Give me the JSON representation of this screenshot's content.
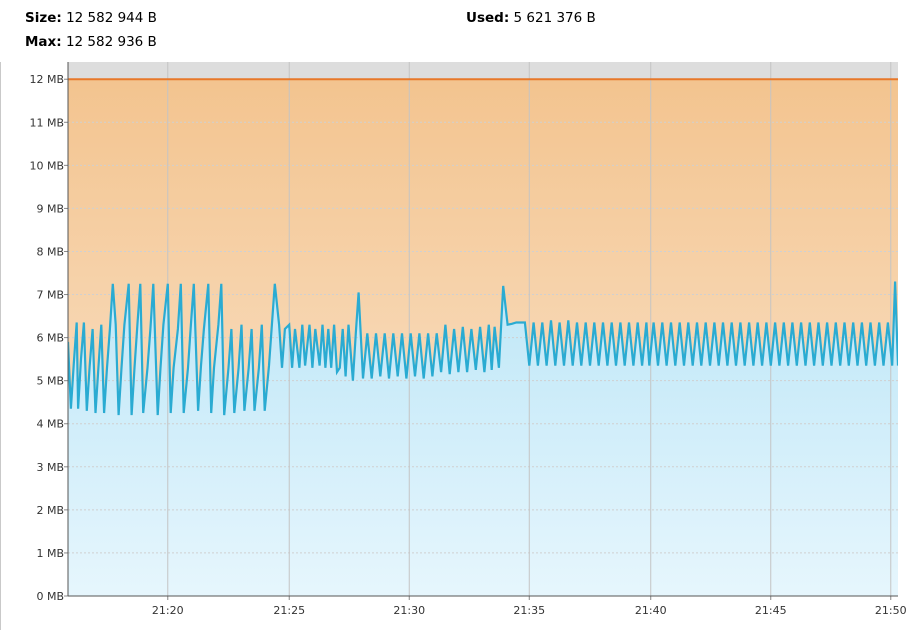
{
  "stats": {
    "size_label": "Size:",
    "size_value": "12 582 944 B",
    "max_label": "Max:",
    "max_value": "12 582 936 B",
    "used_label": "Used:",
    "used_value": "5 621 376 B"
  },
  "colors": {
    "used_line": "#2aabd2",
    "max_line": "#e8782a",
    "upper_fill_top": "#f3c48f",
    "upper_fill_bottom": "#fbe7d2",
    "lower_fill_top": "#bfe7f7",
    "lower_fill_bottom": "#e6f6fd",
    "header_band": "#dddddd",
    "grid": "#d0d0d0"
  },
  "chart_data": {
    "type": "line",
    "title": "",
    "xlabel": "",
    "ylabel": "",
    "ylim": [
      0,
      12.4
    ],
    "xlim": [
      21.264,
      21.838
    ],
    "y_ticks": [
      {
        "value": 0,
        "label": "0 MB"
      },
      {
        "value": 1,
        "label": "1 MB"
      },
      {
        "value": 2,
        "label": "2 MB"
      },
      {
        "value": 3,
        "label": "3 MB"
      },
      {
        "value": 4,
        "label": "4 MB"
      },
      {
        "value": 5,
        "label": "5 MB"
      },
      {
        "value": 6,
        "label": "6 MB"
      },
      {
        "value": 7,
        "label": "7 MB"
      },
      {
        "value": 8,
        "label": "8 MB"
      },
      {
        "value": 9,
        "label": "9 MB"
      },
      {
        "value": 10,
        "label": "10 MB"
      },
      {
        "value": 11,
        "label": "11 MB"
      },
      {
        "value": 12,
        "label": "12 MB"
      }
    ],
    "x_ticks": [
      {
        "value": 21.333,
        "label": "21:20"
      },
      {
        "value": 21.417,
        "label": "21:25"
      },
      {
        "value": 21.5,
        "label": "21:30"
      },
      {
        "value": 21.583,
        "label": "21:35"
      },
      {
        "value": 21.667,
        "label": "21:40"
      },
      {
        "value": 21.75,
        "label": "21:45"
      },
      {
        "value": 21.833,
        "label": "21:50"
      }
    ],
    "series": [
      {
        "name": "Max",
        "x": [
          21.264,
          21.838
        ],
        "y": [
          12.0,
          12.0
        ]
      },
      {
        "name": "Used",
        "x": [
          21.264,
          21.266,
          21.268,
          21.27,
          21.271,
          21.273,
          21.275,
          21.277,
          21.279,
          21.281,
          21.283,
          21.285,
          21.287,
          21.289,
          21.291,
          21.293,
          21.295,
          21.297,
          21.299,
          21.301,
          21.303,
          21.306,
          21.308,
          21.31,
          21.312,
          21.314,
          21.316,
          21.319,
          21.321,
          21.323,
          21.326,
          21.328,
          21.33,
          21.333,
          21.335,
          21.337,
          21.34,
          21.342,
          21.344,
          21.347,
          21.349,
          21.351,
          21.354,
          21.356,
          21.358,
          21.361,
          21.363,
          21.365,
          21.368,
          21.37,
          21.372,
          21.375,
          21.377,
          21.379,
          21.382,
          21.384,
          21.386,
          21.389,
          21.391,
          21.393,
          21.396,
          21.398,
          21.4,
          21.403,
          21.405,
          21.407,
          21.41,
          21.412,
          21.414,
          21.417,
          21.419,
          21.421,
          21.424,
          21.426,
          21.428,
          21.431,
          21.433,
          21.435,
          21.438,
          21.44,
          21.442,
          21.444,
          21.446,
          21.448,
          21.45,
          21.452,
          21.454,
          21.456,
          21.458,
          21.461,
          21.463,
          21.465,
          21.468,
          21.471,
          21.474,
          21.477,
          21.48,
          21.483,
          21.486,
          21.489,
          21.492,
          21.495,
          21.498,
          21.501,
          21.504,
          21.507,
          21.51,
          21.513,
          21.516,
          21.519,
          21.522,
          21.525,
          21.528,
          21.531,
          21.534,
          21.537,
          21.54,
          21.543,
          21.546,
          21.549,
          21.552,
          21.555,
          21.557,
          21.559,
          21.562,
          21.565,
          21.568,
          21.571,
          21.574,
          21.577,
          21.58,
          21.583,
          21.586,
          21.589,
          21.592,
          21.595,
          21.598,
          21.601,
          21.604,
          21.607,
          21.61,
          21.613,
          21.616,
          21.619,
          21.622,
          21.625,
          21.628,
          21.631,
          21.634,
          21.637,
          21.64,
          21.643,
          21.646,
          21.649,
          21.652,
          21.655,
          21.658,
          21.661,
          21.664,
          21.666,
          21.669,
          21.672,
          21.675,
          21.678,
          21.681,
          21.684,
          21.687,
          21.69,
          21.693,
          21.696,
          21.699,
          21.702,
          21.705,
          21.708,
          21.711,
          21.714,
          21.717,
          21.72,
          21.723,
          21.726,
          21.729,
          21.732,
          21.735,
          21.738,
          21.741,
          21.744,
          21.747,
          21.75,
          21.753,
          21.756,
          21.759,
          21.762,
          21.765,
          21.768,
          21.771,
          21.774,
          21.777,
          21.78,
          21.783,
          21.786,
          21.789,
          21.792,
          21.795,
          21.798,
          21.801,
          21.804,
          21.807,
          21.81,
          21.813,
          21.816,
          21.819,
          21.822,
          21.825,
          21.828,
          21.831,
          21.834,
          21.836,
          21.838
        ],
        "y": [
          5.9,
          4.35,
          5.4,
          6.35,
          4.35,
          5.5,
          6.35,
          4.3,
          5.35,
          6.2,
          4.25,
          5.3,
          6.3,
          4.25,
          5.3,
          6.2,
          7.25,
          6.3,
          4.2,
          5.3,
          6.3,
          7.25,
          4.2,
          5.3,
          6.3,
          7.25,
          4.25,
          5.3,
          6.2,
          7.25,
          4.2,
          5.3,
          6.3,
          7.25,
          4.25,
          5.3,
          6.2,
          7.25,
          4.25,
          5.3,
          6.3,
          7.25,
          4.3,
          5.35,
          6.2,
          7.25,
          4.25,
          5.3,
          6.3,
          7.25,
          4.2,
          5.3,
          6.2,
          4.25,
          5.3,
          6.3,
          4.3,
          5.3,
          6.2,
          4.3,
          5.3,
          6.3,
          4.3,
          5.35,
          6.3,
          7.25,
          6.3,
          5.3,
          6.2,
          6.3,
          5.3,
          6.2,
          5.3,
          6.3,
          5.35,
          6.3,
          5.3,
          6.2,
          5.35,
          6.3,
          5.3,
          6.2,
          5.3,
          6.3,
          5.2,
          5.3,
          6.2,
          5.1,
          6.3,
          5.0,
          6.1,
          7.05,
          5.05,
          6.1,
          5.05,
          6.1,
          5.1,
          6.1,
          5.05,
          6.1,
          5.1,
          6.1,
          5.05,
          6.1,
          5.1,
          6.1,
          5.05,
          6.1,
          5.1,
          6.1,
          5.2,
          6.3,
          5.15,
          6.2,
          5.2,
          6.25,
          5.2,
          6.2,
          5.25,
          6.25,
          5.2,
          6.3,
          5.25,
          6.25,
          5.3,
          7.2,
          6.3,
          6.32,
          6.35,
          6.35,
          6.35,
          5.35,
          6.35,
          5.35,
          6.35,
          5.35,
          6.4,
          5.35,
          6.35,
          5.35,
          6.4,
          5.35,
          6.35,
          5.35,
          6.35,
          5.35,
          6.35,
          5.35,
          6.35,
          5.35,
          6.35,
          5.35,
          6.35,
          5.35,
          6.35,
          5.35,
          6.35,
          5.35,
          6.35,
          5.35,
          6.35,
          5.35,
          6.35,
          5.35,
          6.35,
          5.35,
          6.35,
          5.35,
          6.35,
          5.35,
          6.35,
          5.35,
          6.35,
          5.35,
          6.35,
          5.35,
          6.35,
          5.35,
          6.35,
          5.35,
          6.35,
          5.35,
          6.35,
          5.35,
          6.35,
          5.35,
          6.35,
          5.35,
          6.35,
          5.35,
          6.35,
          5.35,
          6.35,
          5.35,
          6.35,
          5.35,
          6.35,
          5.35,
          6.35,
          5.35,
          6.35,
          5.35,
          6.35,
          5.35,
          6.35,
          5.35,
          6.35,
          5.35,
          6.35,
          5.35,
          6.35,
          5.35,
          6.35,
          5.35,
          6.35,
          5.35,
          7.3,
          5.35
        ]
      }
    ],
    "legend": "none",
    "grid": true
  }
}
